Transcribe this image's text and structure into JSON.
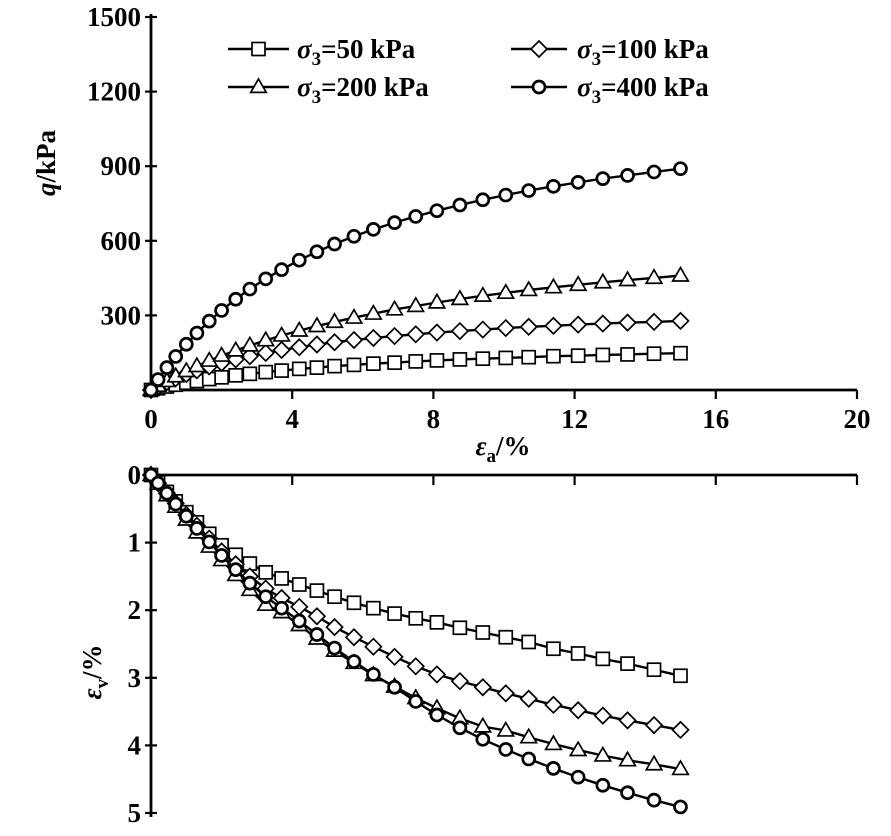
{
  "figure": {
    "background": "#ffffff",
    "ink": "#000000",
    "description": "Triaxial test results: deviator stress and volumetric strain versus axial strain"
  },
  "legend": {
    "items": [
      {
        "id": "sigma3-50",
        "symbol": "σ",
        "subscript": "3",
        "text": "=50 kPa",
        "marker": "square"
      },
      {
        "id": "sigma3-100",
        "symbol": "σ",
        "subscript": "3",
        "text": "=100 kPa",
        "marker": "diamond"
      },
      {
        "id": "sigma3-200",
        "symbol": "σ",
        "subscript": "3",
        "text": "=200 kPa",
        "marker": "triangle"
      },
      {
        "id": "sigma3-400",
        "symbol": "σ",
        "subscript": "3",
        "text": "=400 kPa",
        "marker": "circle"
      }
    ]
  },
  "chart_data": [
    {
      "id": "deviator-stress-vs-axial-strain",
      "type": "line",
      "xlabel": {
        "symbol": "ε",
        "subscript": "a",
        "text": "/%"
      },
      "ylabel": {
        "symbol": "q",
        "subscript": "",
        "text": "/kPa"
      },
      "xlim": [
        0,
        20
      ],
      "ylim": [
        0,
        1500
      ],
      "xticks": [
        0,
        4,
        8,
        12,
        16,
        20
      ],
      "yticks": [
        300,
        600,
        900,
        1200,
        1500
      ],
      "x_tick_labels_shown": true,
      "grid": false,
      "legend_position": "top-inside",
      "series": [
        {
          "name": "σ3=50 kPa",
          "sigma3_kpa": 50,
          "marker": "square",
          "points": [
            [
              0,
              0
            ],
            [
              0.2,
              7
            ],
            [
              0.45,
              14
            ],
            [
              0.7,
              21
            ],
            [
              1,
              29
            ],
            [
              1.3,
              36
            ],
            [
              1.65,
              44
            ],
            [
              2,
              51
            ],
            [
              2.4,
              59
            ],
            [
              2.8,
              65
            ],
            [
              3.25,
              72
            ],
            [
              3.7,
              78
            ],
            [
              4.2,
              85
            ],
            [
              4.7,
              90
            ],
            [
              5.2,
              96
            ],
            [
              5.75,
              101
            ],
            [
              6.3,
              106
            ],
            [
              6.9,
              110
            ],
            [
              7.5,
              115
            ],
            [
              8.1,
              119
            ],
            [
              8.75,
              123
            ],
            [
              9.4,
              126
            ],
            [
              10.05,
              129
            ],
            [
              10.7,
              132
            ],
            [
              11.4,
              136
            ],
            [
              12.1,
              138
            ],
            [
              12.8,
              141
            ],
            [
              13.5,
              143
            ],
            [
              14.25,
              146
            ],
            [
              15,
              148
            ]
          ]
        },
        {
          "name": "σ3=100 kPa",
          "sigma3_kpa": 100,
          "marker": "diamond",
          "points": [
            [
              0,
              0
            ],
            [
              0.2,
              15
            ],
            [
              0.45,
              32
            ],
            [
              0.7,
              47
            ],
            [
              1,
              64
            ],
            [
              1.3,
              79
            ],
            [
              1.65,
              95
            ],
            [
              2,
              109
            ],
            [
              2.4,
              123
            ],
            [
              2.8,
              136
            ],
            [
              3.25,
              149
            ],
            [
              3.7,
              161
            ],
            [
              4.2,
              172
            ],
            [
              4.7,
              183
            ],
            [
              5.2,
              192
            ],
            [
              5.75,
              201
            ],
            [
              6.3,
              209
            ],
            [
              6.9,
              217
            ],
            [
              7.5,
              224
            ],
            [
              8.1,
              231
            ],
            [
              8.75,
              237
            ],
            [
              9.4,
              243
            ],
            [
              10.05,
              249
            ],
            [
              10.7,
              254
            ],
            [
              11.4,
              258
            ],
            [
              12.1,
              263
            ],
            [
              12.8,
              267
            ],
            [
              13.5,
              271
            ],
            [
              14.25,
              274
            ],
            [
              15,
              278
            ]
          ]
        },
        {
          "name": "σ3=200 kPa",
          "sigma3_kpa": 200,
          "marker": "triangle",
          "points": [
            [
              0,
              0
            ],
            [
              0.2,
              17
            ],
            [
              0.45,
              36
            ],
            [
              0.7,
              55
            ],
            [
              1,
              76
            ],
            [
              1.3,
              96
            ],
            [
              1.65,
              118
            ],
            [
              2,
              138
            ],
            [
              2.4,
              159
            ],
            [
              2.8,
              179
            ],
            [
              3.25,
              200
            ],
            [
              3.7,
              219
            ],
            [
              4.2,
              239
            ],
            [
              4.7,
              257
            ],
            [
              5.2,
              274
            ],
            [
              5.75,
              291
            ],
            [
              6.3,
              307
            ],
            [
              6.9,
              324
            ],
            [
              7.5,
              338
            ],
            [
              8.1,
              352
            ],
            [
              8.75,
              366
            ],
            [
              9.4,
              379
            ],
            [
              10.05,
              391
            ],
            [
              10.7,
              402
            ],
            [
              11.4,
              413
            ],
            [
              12.1,
              423
            ],
            [
              12.8,
              433
            ],
            [
              13.5,
              442
            ],
            [
              14.25,
              451
            ],
            [
              15,
              460
            ]
          ]
        },
        {
          "name": "σ3=400 kPa",
          "sigma3_kpa": 400,
          "marker": "circle",
          "points": [
            [
              0,
              0
            ],
            [
              0.2,
              42
            ],
            [
              0.45,
              90
            ],
            [
              0.7,
              135
            ],
            [
              1,
              184
            ],
            [
              1.3,
              229
            ],
            [
              1.65,
              277
            ],
            [
              2,
              320
            ],
            [
              2.4,
              365
            ],
            [
              2.8,
              406
            ],
            [
              3.25,
              447
            ],
            [
              3.7,
              484
            ],
            [
              4.2,
              522
            ],
            [
              4.7,
              556
            ],
            [
              5.2,
              587
            ],
            [
              5.75,
              618
            ],
            [
              6.3,
              646
            ],
            [
              6.9,
              673
            ],
            [
              7.5,
              698
            ],
            [
              8.1,
              721
            ],
            [
              8.75,
              744
            ],
            [
              9.4,
              765
            ],
            [
              10.05,
              784
            ],
            [
              10.7,
              802
            ],
            [
              11.4,
              819
            ],
            [
              12.1,
              835
            ],
            [
              12.8,
              850
            ],
            [
              13.5,
              863
            ],
            [
              14.25,
              877
            ],
            [
              15,
              890
            ]
          ]
        }
      ]
    },
    {
      "id": "volumetric-strain-vs-axial-strain",
      "type": "line",
      "xlabel": null,
      "ylabel": {
        "symbol": "ε",
        "subscript": "v",
        "text": "/%"
      },
      "xlim": [
        0,
        20
      ],
      "ylim": [
        0,
        5
      ],
      "y_inverted": true,
      "xticks": [
        4,
        8,
        12,
        16,
        20
      ],
      "yticks": [
        0,
        1,
        2,
        3,
        4,
        5
      ],
      "x_tick_labels_shown": false,
      "grid": false,
      "series": [
        {
          "name": "σ3=50 kPa",
          "sigma3_kpa": 50,
          "marker": "square",
          "points": [
            [
              0,
              0
            ],
            [
              0.2,
              0.11
            ],
            [
              0.45,
              0.25
            ],
            [
              0.7,
              0.39
            ],
            [
              1,
              0.55
            ],
            [
              1.3,
              0.7
            ],
            [
              1.65,
              0.87
            ],
            [
              2,
              1.04
            ],
            [
              2.4,
              1.18
            ],
            [
              2.8,
              1.31
            ],
            [
              3.25,
              1.44
            ],
            [
              3.7,
              1.53
            ],
            [
              4.2,
              1.62
            ],
            [
              4.7,
              1.71
            ],
            [
              5.2,
              1.8
            ],
            [
              5.75,
              1.89
            ],
            [
              6.3,
              1.97
            ],
            [
              6.9,
              2.05
            ],
            [
              7.5,
              2.12
            ],
            [
              8.1,
              2.18
            ],
            [
              8.75,
              2.26
            ],
            [
              9.4,
              2.33
            ],
            [
              10.05,
              2.4
            ],
            [
              10.7,
              2.47
            ],
            [
              11.4,
              2.57
            ],
            [
              12.1,
              2.64
            ],
            [
              12.8,
              2.72
            ],
            [
              13.5,
              2.79
            ],
            [
              14.25,
              2.88
            ],
            [
              15,
              2.97
            ]
          ]
        },
        {
          "name": "σ3=100 kPa",
          "sigma3_kpa": 100,
          "marker": "diamond",
          "points": [
            [
              0,
              0
            ],
            [
              0.2,
              0.12
            ],
            [
              0.45,
              0.27
            ],
            [
              0.7,
              0.42
            ],
            [
              1,
              0.59
            ],
            [
              1.3,
              0.75
            ],
            [
              1.65,
              0.94
            ],
            [
              2,
              1.13
            ],
            [
              2.4,
              1.32
            ],
            [
              2.8,
              1.5
            ],
            [
              3.25,
              1.68
            ],
            [
              3.7,
              1.82
            ],
            [
              4.2,
              1.95
            ],
            [
              4.7,
              2.09
            ],
            [
              5.2,
              2.25
            ],
            [
              5.75,
              2.4
            ],
            [
              6.3,
              2.54
            ],
            [
              6.9,
              2.69
            ],
            [
              7.5,
              2.83
            ],
            [
              8.1,
              2.95
            ],
            [
              8.75,
              3.05
            ],
            [
              9.4,
              3.14
            ],
            [
              10.05,
              3.23
            ],
            [
              10.7,
              3.31
            ],
            [
              11.4,
              3.4
            ],
            [
              12.1,
              3.48
            ],
            [
              12.8,
              3.56
            ],
            [
              13.5,
              3.63
            ],
            [
              14.25,
              3.7
            ],
            [
              15,
              3.77
            ]
          ]
        },
        {
          "name": "σ3=200 kPa",
          "sigma3_kpa": 200,
          "marker": "triangle",
          "points": [
            [
              0,
              0
            ],
            [
              0.2,
              0.13
            ],
            [
              0.45,
              0.3
            ],
            [
              0.7,
              0.47
            ],
            [
              1,
              0.66
            ],
            [
              1.3,
              0.85
            ],
            [
              1.65,
              1.06
            ],
            [
              2,
              1.26
            ],
            [
              2.4,
              1.48
            ],
            [
              2.8,
              1.7
            ],
            [
              3.25,
              1.92
            ],
            [
              3.7,
              2.03
            ],
            [
              4.2,
              2.22
            ],
            [
              4.7,
              2.42
            ],
            [
              5.2,
              2.6
            ],
            [
              5.75,
              2.78
            ],
            [
              6.3,
              2.96
            ],
            [
              6.9,
              3.13
            ],
            [
              7.5,
              3.3
            ],
            [
              8.1,
              3.45
            ],
            [
              8.75,
              3.6
            ],
            [
              9.4,
              3.72
            ],
            [
              10.05,
              3.78
            ],
            [
              10.7,
              3.88
            ],
            [
              11.4,
              3.98
            ],
            [
              12.1,
              4.07
            ],
            [
              12.8,
              4.15
            ],
            [
              13.5,
              4.22
            ],
            [
              14.25,
              4.28
            ],
            [
              15,
              4.35
            ]
          ]
        },
        {
          "name": "σ3=400 kPa",
          "sigma3_kpa": 400,
          "marker": "circle",
          "points": [
            [
              0,
              0
            ],
            [
              0.2,
              0.12
            ],
            [
              0.45,
              0.27
            ],
            [
              0.7,
              0.43
            ],
            [
              1,
              0.61
            ],
            [
              1.3,
              0.79
            ],
            [
              1.65,
              0.99
            ],
            [
              2,
              1.19
            ],
            [
              2.4,
              1.4
            ],
            [
              2.8,
              1.6
            ],
            [
              3.25,
              1.8
            ],
            [
              3.7,
              1.97
            ],
            [
              4.2,
              2.16
            ],
            [
              4.7,
              2.36
            ],
            [
              5.2,
              2.56
            ],
            [
              5.75,
              2.76
            ],
            [
              6.3,
              2.95
            ],
            [
              6.9,
              3.14
            ],
            [
              7.5,
              3.35
            ],
            [
              8.1,
              3.55
            ],
            [
              8.75,
              3.74
            ],
            [
              9.4,
              3.91
            ],
            [
              10.05,
              4.06
            ],
            [
              10.7,
              4.2
            ],
            [
              11.4,
              4.34
            ],
            [
              12.1,
              4.47
            ],
            [
              12.8,
              4.59
            ],
            [
              13.5,
              4.7
            ],
            [
              14.25,
              4.81
            ],
            [
              15,
              4.91
            ]
          ]
        }
      ]
    }
  ]
}
